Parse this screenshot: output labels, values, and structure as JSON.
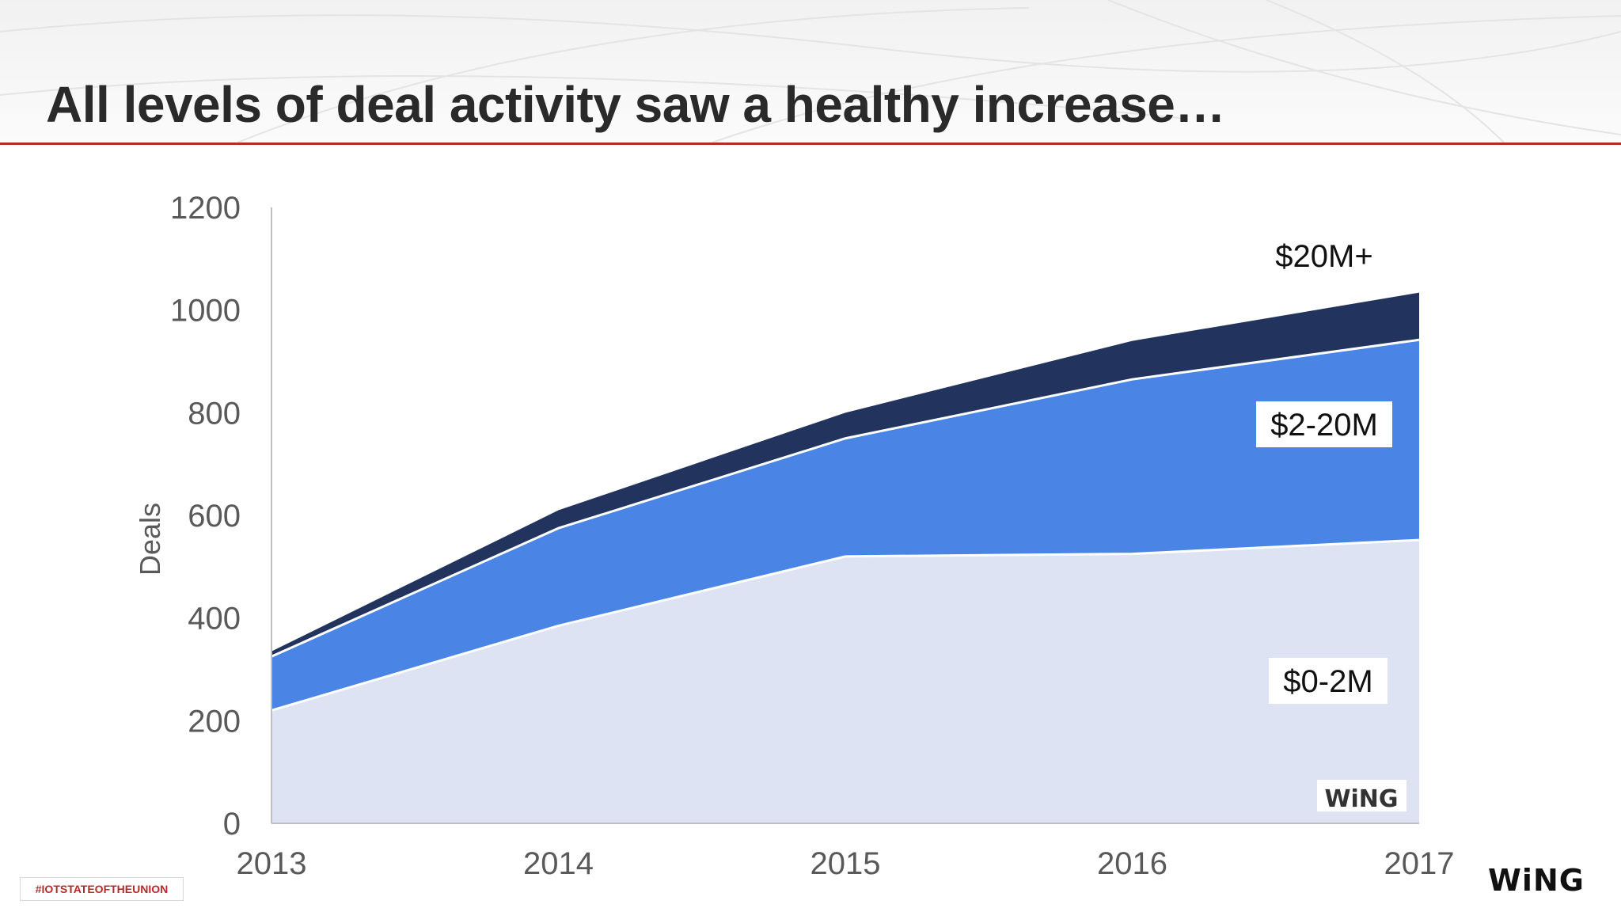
{
  "slide": {
    "title": "All levels of deal activity saw a healthy increase…",
    "hashtag": "#IOTSTATEOFTHEUNION",
    "brand_logo": "WiNG",
    "chart_watermark": "WiNG"
  },
  "colors": {
    "title_rule": "#b52a2a",
    "series_0_2m": "#dde3f3",
    "series_2_20m": "#4a84e4",
    "series_20m_plus": "#22345e",
    "axis_text": "#595959"
  },
  "chart_data": {
    "type": "area",
    "stacked": true,
    "title": "",
    "xlabel": "",
    "ylabel": "Deals",
    "x": [
      "2013",
      "2014",
      "2015",
      "2016",
      "2017"
    ],
    "ylim": [
      0,
      1200
    ],
    "yticks": [
      0,
      200,
      400,
      600,
      800,
      1000,
      1200
    ],
    "grid": false,
    "legend": "inline labels",
    "series": [
      {
        "name": "$0-2M",
        "values": [
          220,
          385,
          520,
          525,
          552
        ]
      },
      {
        "name": "$2-20M",
        "values": [
          105,
          190,
          230,
          340,
          390
        ]
      },
      {
        "name": "$20M+",
        "values": [
          10,
          35,
          50,
          75,
          92
        ]
      }
    ]
  }
}
